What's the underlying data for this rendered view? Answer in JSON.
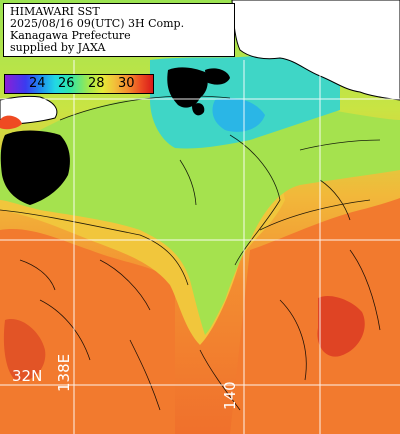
{
  "title": {
    "lines": [
      "HIMAWARI SST",
      "2025/08/16 09(UTC) 3H Comp.",
      "Kanagawa Prefecture",
      "supplied by JAXA"
    ]
  },
  "legend": {
    "labels": [
      "24",
      "26",
      "28",
      "30"
    ]
  },
  "grid": {
    "lat_label": "32N",
    "lon_label_left": "138E",
    "lon_label_right": "140"
  },
  "colors": {
    "land": "#ffffff",
    "cloud": "#000000",
    "sea_warm": "#f4772e",
    "sea_hot": "#e04524",
    "sea_mid": "#f3c33a",
    "sea_cool": "#a8e64e",
    "sea_cold": "#3fd6c6",
    "grid_line": "#ffffff"
  }
}
